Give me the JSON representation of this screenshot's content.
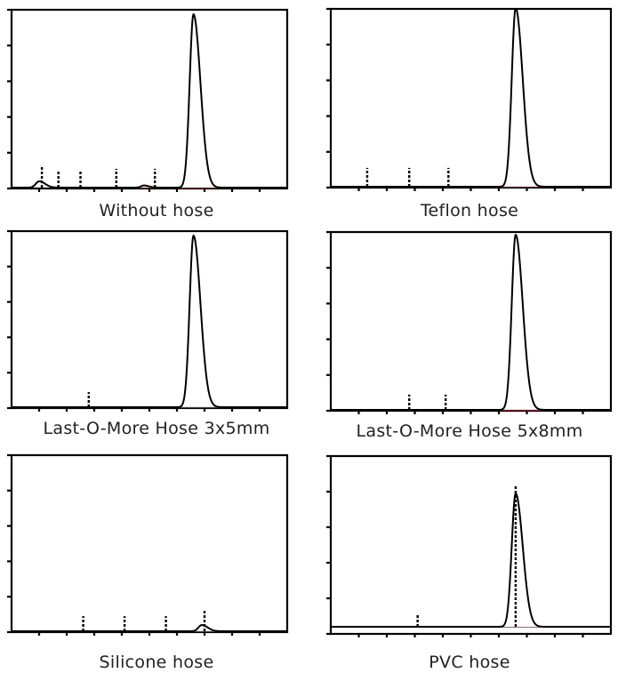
{
  "chart_data": [
    {
      "type": "line",
      "title": "Without hose",
      "xlim": [
        0,
        100
      ],
      "ylim": [
        0,
        100
      ],
      "peak": {
        "x": 66,
        "height": 97,
        "width": 1.4
      },
      "small_peaks": [
        {
          "x": 10,
          "height": 3.5,
          "width": 1.2
        },
        {
          "x": 48,
          "height": 1.2,
          "width": 1
        }
      ],
      "markers": [
        {
          "x": 11,
          "height": 13
        },
        {
          "x": 17,
          "height": 10
        },
        {
          "x": 25,
          "height": 10
        },
        {
          "x": 38,
          "height": 11
        },
        {
          "x": 52,
          "height": 11
        }
      ],
      "baseline": 0.5,
      "red_segment": [
        36,
        75
      ]
    },
    {
      "type": "line",
      "title": "Teflon hose",
      "xlim": [
        0,
        100
      ],
      "ylim": [
        0,
        100
      ],
      "peak": {
        "x": 66,
        "height": 100,
        "width": 1.4
      },
      "small_peaks": [],
      "markers": [
        {
          "x": 13,
          "height": 11
        },
        {
          "x": 28,
          "height": 11
        },
        {
          "x": 42,
          "height": 11
        }
      ],
      "baseline": 0.5,
      "red_segment": [
        35,
        90
      ]
    },
    {
      "type": "line",
      "title": "Last-O-More Hose 3x5mm",
      "xlim": [
        0,
        100
      ],
      "ylim": [
        0,
        100
      ],
      "peak": {
        "x": 66,
        "height": 97,
        "width": 1.4
      },
      "small_peaks": [],
      "markers": [
        {
          "x": 28,
          "height": 9
        }
      ],
      "baseline": 0.5,
      "red_segment": [
        28,
        88
      ]
    },
    {
      "type": "line",
      "title": "Last-O-More Hose 5x8mm",
      "xlim": [
        0,
        100
      ],
      "ylim": [
        0,
        100
      ],
      "peak": {
        "x": 66,
        "height": 98,
        "width": 1.4
      },
      "small_peaks": [],
      "markers": [
        {
          "x": 28,
          "height": 9
        },
        {
          "x": 41,
          "height": 9
        }
      ],
      "baseline": 0.5,
      "red_segment": [
        28,
        88
      ]
    },
    {
      "type": "line",
      "title": "Silicone hose",
      "xlim": [
        0,
        100
      ],
      "ylim": [
        0,
        100
      ],
      "peak": null,
      "small_peaks": [
        {
          "x": 69,
          "height": 3.5,
          "width": 1.2
        }
      ],
      "markers": [
        {
          "x": 26,
          "height": 9
        },
        {
          "x": 41,
          "height": 9
        },
        {
          "x": 56,
          "height": 9
        },
        {
          "x": 70,
          "height": 12
        }
      ],
      "baseline": 0.5,
      "red_segment": [
        50,
        80
      ]
    },
    {
      "type": "line",
      "title": "PVC hose",
      "xlim": [
        0,
        100
      ],
      "ylim": [
        0,
        100
      ],
      "peak": {
        "x": 66,
        "height": 75,
        "width": 1.4
      },
      "small_peaks": [],
      "markers": [
        {
          "x": 31,
          "height": 11
        },
        {
          "x": 66,
          "height": 84
        }
      ],
      "baseline": 4,
      "red_segment": [
        5,
        95
      ]
    }
  ]
}
